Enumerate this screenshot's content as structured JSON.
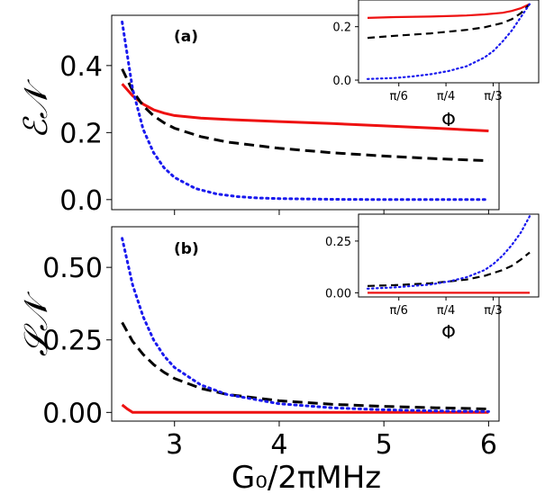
{
  "colors": {
    "red": "#ee1111",
    "black": "#000000",
    "blue": "#1a1aee"
  },
  "figure": {
    "xlabel": "G₀/2πMHz"
  },
  "chart_data": [
    {
      "type": "line",
      "panel": "(a)",
      "ylabel": "ℰ𝒩",
      "xlim": [
        2.4,
        6.1
      ],
      "ylim": [
        -0.03,
        0.55
      ],
      "xticks": [
        {
          "v": 3,
          "label": "3"
        },
        {
          "v": 4,
          "label": "4"
        },
        {
          "v": 5,
          "label": "5"
        },
        {
          "v": 6,
          "label": "6"
        }
      ],
      "yticks": [
        {
          "v": 0,
          "label": "0.0"
        },
        {
          "v": 0.2,
          "label": "0.2"
        },
        {
          "v": 0.4,
          "label": "0.4"
        }
      ],
      "show_xticklabels": false,
      "series": [
        {
          "name": "red",
          "style": "solid",
          "color": "red",
          "x": [
            2.5,
            2.6,
            2.7,
            2.8,
            2.9,
            3.0,
            3.25,
            3.5,
            4.0,
            4.5,
            5.0,
            5.5,
            6.0
          ],
          "y": [
            0.345,
            0.31,
            0.285,
            0.268,
            0.258,
            0.251,
            0.243,
            0.239,
            0.233,
            0.227,
            0.22,
            0.213,
            0.205
          ]
        },
        {
          "name": "black",
          "style": "dashed",
          "color": "black",
          "x": [
            2.5,
            2.6,
            2.7,
            2.8,
            2.9,
            3.0,
            3.25,
            3.5,
            4.0,
            4.5,
            5.0,
            5.5,
            6.0
          ],
          "y": [
            0.39,
            0.325,
            0.28,
            0.25,
            0.229,
            0.213,
            0.188,
            0.172,
            0.153,
            0.14,
            0.13,
            0.122,
            0.116
          ]
        },
        {
          "name": "blue",
          "style": "dotted",
          "color": "blue",
          "x": [
            2.5,
            2.6,
            2.7,
            2.8,
            2.9,
            3.0,
            3.2,
            3.4,
            3.6,
            3.8,
            4.0,
            4.5,
            5.0,
            5.5,
            6.0
          ],
          "y": [
            0.53,
            0.33,
            0.21,
            0.14,
            0.095,
            0.066,
            0.033,
            0.017,
            0.009,
            0.005,
            0.003,
            0.001,
            0.0,
            0.0,
            0.0
          ]
        }
      ],
      "inset": {
        "xlabel": "Φ",
        "xlim": [
          0.3,
          1.3
        ],
        "ylim": [
          -0.01,
          0.3
        ],
        "xticks": [
          {
            "v": 0.5236,
            "label": "π/6"
          },
          {
            "v": 0.7854,
            "label": "π/4"
          },
          {
            "v": 1.0472,
            "label": "π/3"
          }
        ],
        "yticks": [
          {
            "v": 0,
            "label": "0.0"
          },
          {
            "v": 0.2,
            "label": "0.2"
          }
        ],
        "series": [
          {
            "name": "red",
            "style": "solid",
            "color": "red",
            "x": [
              0.35,
              0.5,
              0.7,
              0.9,
              1.0,
              1.1,
              1.15,
              1.2,
              1.25
            ],
            "y": [
              0.233,
              0.236,
              0.238,
              0.242,
              0.246,
              0.252,
              0.259,
              0.269,
              0.285
            ]
          },
          {
            "name": "black",
            "style": "dashed",
            "color": "black",
            "x": [
              0.35,
              0.5,
              0.7,
              0.9,
              1.0,
              1.1,
              1.15,
              1.2,
              1.25
            ],
            "y": [
              0.158,
              0.166,
              0.175,
              0.188,
              0.198,
              0.214,
              0.228,
              0.25,
              0.285
            ]
          },
          {
            "name": "blue",
            "style": "dotted",
            "color": "blue",
            "x": [
              0.35,
              0.5,
              0.6,
              0.7,
              0.8,
              0.9,
              1.0,
              1.05,
              1.1,
              1.15,
              1.2,
              1.25
            ],
            "y": [
              0.004,
              0.008,
              0.014,
              0.022,
              0.034,
              0.052,
              0.085,
              0.11,
              0.145,
              0.185,
              0.235,
              0.285
            ]
          }
        ]
      }
    },
    {
      "type": "line",
      "panel": "(b)",
      "ylabel": "𝒮𝒩",
      "xlim": [
        2.4,
        6.1
      ],
      "ylim": [
        -0.03,
        0.64
      ],
      "xticks": [
        {
          "v": 3,
          "label": "3"
        },
        {
          "v": 4,
          "label": "4"
        },
        {
          "v": 5,
          "label": "5"
        },
        {
          "v": 6,
          "label": "6"
        }
      ],
      "yticks": [
        {
          "v": 0,
          "label": "0.00"
        },
        {
          "v": 0.25,
          "label": "0.25"
        },
        {
          "v": 0.5,
          "label": "0.50"
        }
      ],
      "show_xticklabels": true,
      "series": [
        {
          "name": "red",
          "style": "solid",
          "color": "red",
          "x": [
            2.5,
            2.55,
            2.6,
            3.0,
            4.0,
            5.0,
            6.0
          ],
          "y": [
            0.026,
            0.012,
            0.0,
            0.0,
            0.0,
            0.0,
            0.0
          ]
        },
        {
          "name": "black",
          "style": "dashed",
          "color": "black",
          "x": [
            2.5,
            2.6,
            2.7,
            2.8,
            2.9,
            3.0,
            3.25,
            3.5,
            4.0,
            4.5,
            5.0,
            5.5,
            6.0
          ],
          "y": [
            0.31,
            0.245,
            0.2,
            0.165,
            0.138,
            0.117,
            0.083,
            0.062,
            0.04,
            0.028,
            0.021,
            0.016,
            0.012
          ]
        },
        {
          "name": "blue",
          "style": "dotted",
          "color": "blue",
          "x": [
            2.5,
            2.6,
            2.7,
            2.8,
            2.9,
            3.0,
            3.25,
            3.5,
            4.0,
            4.5,
            5.0,
            5.5,
            6.0
          ],
          "y": [
            0.6,
            0.44,
            0.33,
            0.25,
            0.195,
            0.155,
            0.095,
            0.062,
            0.03,
            0.016,
            0.009,
            0.005,
            0.003
          ]
        }
      ],
      "inset": {
        "xlabel": "Φ",
        "xlim": [
          0.3,
          1.3
        ],
        "ylim": [
          -0.02,
          0.38
        ],
        "xticks": [
          {
            "v": 0.5236,
            "label": "π/6"
          },
          {
            "v": 0.7854,
            "label": "π/4"
          },
          {
            "v": 1.0472,
            "label": "π/3"
          }
        ],
        "yticks": [
          {
            "v": 0,
            "label": "0.00"
          },
          {
            "v": 0.25,
            "label": "0.25"
          }
        ],
        "series": [
          {
            "name": "red",
            "style": "solid",
            "color": "red",
            "x": [
              0.35,
              1.25
            ],
            "y": [
              0.0,
              0.0
            ]
          },
          {
            "name": "black",
            "style": "dashed",
            "color": "black",
            "x": [
              0.35,
              0.5,
              0.7,
              0.9,
              1.0,
              1.1,
              1.15,
              1.2,
              1.25
            ],
            "y": [
              0.033,
              0.037,
              0.046,
              0.064,
              0.082,
              0.11,
              0.13,
              0.16,
              0.195
            ]
          },
          {
            "name": "blue",
            "style": "dotted",
            "color": "blue",
            "x": [
              0.35,
              0.5,
              0.7,
              0.8,
              0.9,
              1.0,
              1.05,
              1.1,
              1.15,
              1.2,
              1.25
            ],
            "y": [
              0.02,
              0.026,
              0.04,
              0.055,
              0.075,
              0.11,
              0.14,
              0.18,
              0.23,
              0.29,
              0.37
            ]
          }
        ]
      }
    }
  ]
}
